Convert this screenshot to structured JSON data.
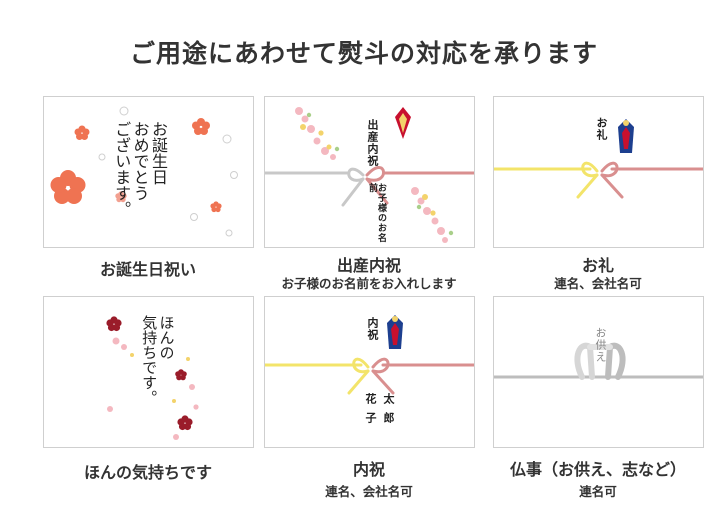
{
  "title": "ご用途にあわせて熨斗の対応を承ります",
  "cards": [
    {
      "label": "お誕生日祝い",
      "sub": "",
      "inner": [
        "お誕生日",
        "おめでとう",
        "ございます。"
      ]
    },
    {
      "label": "出産内祝",
      "sub": "お子様のお名前をお入れします",
      "inner": [
        "出産内祝",
        "お子様のお名前"
      ]
    },
    {
      "label": "お礼",
      "sub": "連名、会社名可",
      "inner": [
        "お礼"
      ]
    },
    {
      "label": "ほんの気持ちです",
      "sub": "",
      "inner": [
        "ほんの",
        "気持ちです。"
      ]
    },
    {
      "label": "内祝",
      "sub": "連名、会社名可",
      "inner": [
        "内祝",
        "花子",
        "太郎"
      ]
    },
    {
      "label": "仏事（お供え、志など）",
      "sub": "連名可",
      "inner": [
        "お供え"
      ]
    }
  ],
  "colors": {
    "mizuhiki_red": "#d98f8f",
    "mizuhiki_gold": "#f3e46a",
    "mizuhiki_silver": "#c8c8c8",
    "noshi_red": "#c8102e",
    "noshi_blue": "#1d3f8f",
    "flower_orange": "#ef7352"
  },
  "icons": [
    "plum-blossom-icon",
    "noshi-ornament-icon",
    "mizuhiki-bow-icon"
  ]
}
